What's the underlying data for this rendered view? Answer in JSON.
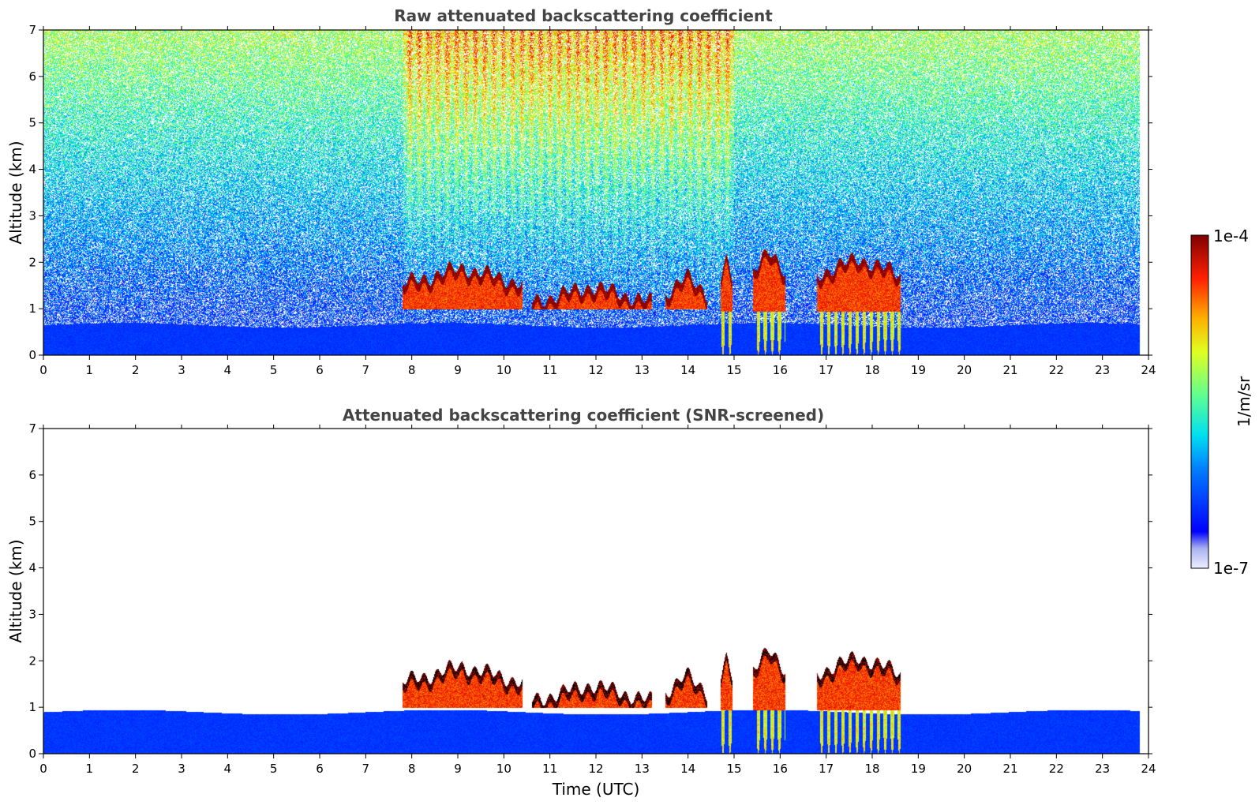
{
  "chart_data": [
    {
      "type": "heatmap",
      "title": "Raw attenuated backscattering coefficient",
      "xlabel": "",
      "ylabel": "Altitude (km)",
      "xlim": [
        0,
        24
      ],
      "ylim": [
        0,
        7
      ],
      "xticks": [
        "0",
        "1",
        "2",
        "3",
        "4",
        "5",
        "6",
        "7",
        "8",
        "9",
        "10",
        "11",
        "12",
        "13",
        "14",
        "15",
        "16",
        "17",
        "18",
        "19",
        "20",
        "21",
        "22",
        "23",
        "24"
      ],
      "yticks": [
        "0",
        "1",
        "2",
        "3",
        "4",
        "5",
        "6",
        "7"
      ],
      "data_end_time": 23.8,
      "boundary_layer_top_km": 0.65,
      "noise_band": {
        "from_hour": 7.8,
        "to_hour": 15.0,
        "level": "high"
      },
      "cloud_layers": [
        {
          "t_start": 7.8,
          "t_end": 10.4,
          "base_km": 1.0,
          "top_km": 1.9
        },
        {
          "t_start": 10.6,
          "t_end": 13.2,
          "base_km": 1.0,
          "top_km": 1.5
        },
        {
          "t_start": 13.5,
          "t_end": 14.4,
          "base_km": 1.0,
          "top_km": 1.7
        },
        {
          "t_start": 14.7,
          "t_end": 14.95,
          "base_km": 0.0,
          "top_km": 2.0
        },
        {
          "t_start": 15.4,
          "t_end": 16.1,
          "base_km": 0.0,
          "top_km": 2.2
        },
        {
          "t_start": 16.8,
          "t_end": 18.6,
          "base_km": 0.0,
          "top_km": 2.1
        }
      ]
    },
    {
      "type": "heatmap",
      "title": "Attenuated backscattering coefficient (SNR-screened)",
      "xlabel": "Time (UTC)",
      "ylabel": "Altitude (km)",
      "xlim": [
        0,
        24
      ],
      "ylim": [
        0,
        7
      ],
      "xticks": [
        "0",
        "1",
        "2",
        "3",
        "4",
        "5",
        "6",
        "7",
        "8",
        "9",
        "10",
        "11",
        "12",
        "13",
        "14",
        "15",
        "16",
        "17",
        "18",
        "19",
        "20",
        "21",
        "22",
        "23",
        "24"
      ],
      "yticks": [
        "0",
        "1",
        "2",
        "3",
        "4",
        "5",
        "6",
        "7"
      ],
      "data_end_time": 23.8,
      "boundary_layer_top_km": 0.9
    }
  ],
  "colorbar": {
    "min_label": "1e-7",
    "max_label": "1e-4",
    "label": "1/m/sr",
    "scale": "log",
    "colormap": "jet"
  }
}
